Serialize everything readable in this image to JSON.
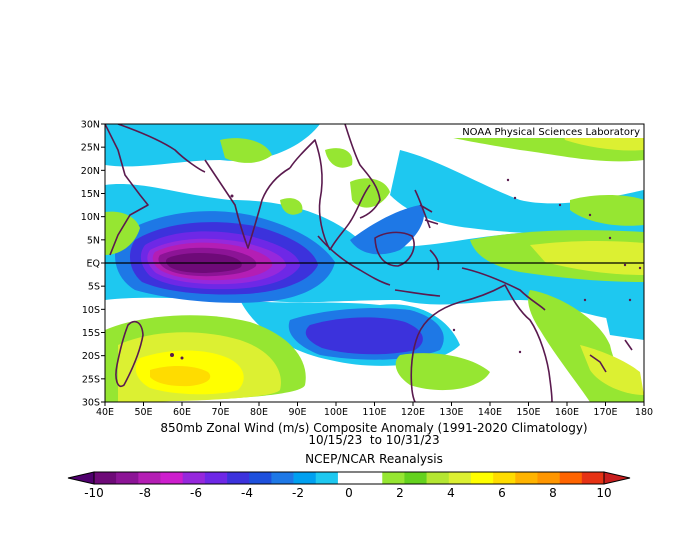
{
  "map": {
    "credit": "NOAA Physical Sciences Laboratory",
    "lon_labels": [
      "40E",
      "50E",
      "60E",
      "70E",
      "80E",
      "90E",
      "100E",
      "110E",
      "120E",
      "130E",
      "140E",
      "150E",
      "160E",
      "170E",
      "180"
    ],
    "lat_labels": [
      "30N",
      "25N",
      "20N",
      "15N",
      "10N",
      "5N",
      "EQ",
      "5S",
      "10S",
      "15S",
      "20S",
      "25S",
      "30S"
    ],
    "extent": {
      "lon": [
        40,
        180
      ],
      "lat": [
        -30,
        30
      ]
    }
  },
  "captions": {
    "line1": "850mb Zonal Wind (m/s) Composite Anomaly (1991-2020 Climatology)",
    "line2": "10/15/23  to 10/31/23",
    "line3": "NCEP/NCAR Reanalysis"
  },
  "colorbar": {
    "labels": [
      "-10",
      "-8",
      "-6",
      "-4",
      "-2",
      "0",
      "2",
      "4",
      "6",
      "8",
      "10"
    ],
    "colors": [
      "#6e0a78",
      "#8c1496",
      "#b41eb4",
      "#cd1ecd",
      "#9628dc",
      "#6e28e6",
      "#3c32dc",
      "#1e50dc",
      "#1e78e6",
      "#00a0f0",
      "#1ec8f0",
      "#ffffff",
      "#ffffff",
      "#96e632",
      "#64d21e",
      "#b4e632",
      "#dcf032",
      "#ffff00",
      "#ffdc00",
      "#ffb400",
      "#ff9600",
      "#ff6400",
      "#e63214"
    ],
    "arrow_left": "#50006e",
    "arrow_right": "#c81e1e"
  }
}
